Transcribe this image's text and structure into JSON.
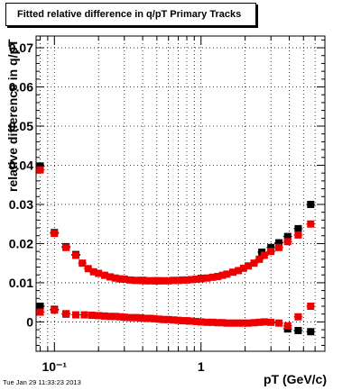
{
  "title": "Fitted relative difference in q/pT  Primary Tracks",
  "timestamp": "Tue Jan 29 11:33:23 2013",
  "chart_data": {
    "type": "scatter",
    "xlabel": "pT (GeV/c)",
    "ylabel": "relative difference in q/pT",
    "xscale": "log",
    "xlim": [
      0.075,
      7.0
    ],
    "ylim": [
      -0.0075,
      0.073
    ],
    "grid": true,
    "x_tick_labels": [
      {
        "x": 0.1,
        "label": "10⁻¹"
      },
      {
        "x": 1,
        "label": "1"
      }
    ],
    "y_tick_labels": [
      {
        "y": 0,
        "label": "0"
      },
      {
        "y": 0.01,
        "label": "0.01"
      },
      {
        "y": 0.02,
        "label": "0.02"
      },
      {
        "y": 0.03,
        "label": "0.03"
      },
      {
        "y": 0.04,
        "label": "0.04"
      },
      {
        "y": 0.05,
        "label": "0.05"
      },
      {
        "y": 0.06,
        "label": "0.06"
      },
      {
        "y": 0.07,
        "label": "0.07"
      }
    ],
    "series": [
      {
        "color": "#000000",
        "points": [
          [
            0.08,
            0.0398
          ],
          [
            0.1,
            0.0228
          ],
          [
            0.12,
            0.0192
          ],
          [
            0.14,
            0.0172
          ],
          [
            0.4,
            0.0106
          ],
          [
            0.5,
            0.0105
          ],
          [
            1.0,
            0.0111
          ],
          [
            2.6,
            0.0178
          ],
          [
            3.0,
            0.019
          ],
          [
            3.4,
            0.0202
          ],
          [
            3.9,
            0.0218
          ],
          [
            4.6,
            0.0238
          ],
          [
            5.6,
            0.03
          ],
          [
            0.08,
            0.004
          ],
          [
            0.1,
            0.0032
          ],
          [
            0.12,
            0.002
          ],
          [
            3.9,
            -0.0018
          ],
          [
            4.6,
            -0.0022
          ],
          [
            5.6,
            -0.0025
          ]
        ]
      },
      {
        "color": "#ee0000",
        "points": [
          [
            0.08,
            0.0388
          ],
          [
            0.1,
            0.0226
          ],
          [
            0.12,
            0.019
          ],
          [
            0.14,
            0.017
          ],
          [
            0.155,
            0.015
          ],
          [
            0.17,
            0.0136
          ],
          [
            0.185,
            0.0128
          ],
          [
            0.2,
            0.0124
          ],
          [
            0.22,
            0.0119
          ],
          [
            0.24,
            0.0115
          ],
          [
            0.26,
            0.0112
          ],
          [
            0.28,
            0.011
          ],
          [
            0.3,
            0.0109
          ],
          [
            0.33,
            0.0107
          ],
          [
            0.36,
            0.0106
          ],
          [
            0.39,
            0.0106
          ],
          [
            0.42,
            0.0105
          ],
          [
            0.45,
            0.0105
          ],
          [
            0.48,
            0.0105
          ],
          [
            0.52,
            0.0105
          ],
          [
            0.56,
            0.0105
          ],
          [
            0.6,
            0.0105
          ],
          [
            0.65,
            0.0106
          ],
          [
            0.7,
            0.0106
          ],
          [
            0.75,
            0.0107
          ],
          [
            0.8,
            0.0107
          ],
          [
            0.86,
            0.0108
          ],
          [
            0.93,
            0.0109
          ],
          [
            1.0,
            0.011
          ],
          [
            1.1,
            0.0112
          ],
          [
            1.2,
            0.0114
          ],
          [
            1.3,
            0.0116
          ],
          [
            1.4,
            0.0119
          ],
          [
            1.5,
            0.0122
          ],
          [
            1.65,
            0.0127
          ],
          [
            1.8,
            0.0131
          ],
          [
            1.95,
            0.0137
          ],
          [
            2.1,
            0.0143
          ],
          [
            2.3,
            0.015
          ],
          [
            2.5,
            0.016
          ],
          [
            2.7,
            0.017
          ],
          [
            3.0,
            0.018
          ],
          [
            3.4,
            0.019
          ],
          [
            3.9,
            0.0205
          ],
          [
            4.6,
            0.0222
          ],
          [
            5.6,
            0.025
          ],
          [
            0.08,
            0.0025
          ],
          [
            0.1,
            0.003
          ],
          [
            0.12,
            0.0021
          ],
          [
            0.14,
            0.0018
          ],
          [
            0.16,
            0.0018
          ],
          [
            0.18,
            0.0017
          ],
          [
            0.2,
            0.0016
          ],
          [
            0.22,
            0.0015
          ],
          [
            0.24,
            0.0014
          ],
          [
            0.26,
            0.0014
          ],
          [
            0.28,
            0.0013
          ],
          [
            0.3,
            0.0012
          ],
          [
            0.33,
            0.0011
          ],
          [
            0.36,
            0.0011
          ],
          [
            0.39,
            0.001
          ],
          [
            0.42,
            0.0009
          ],
          [
            0.45,
            0.0009
          ],
          [
            0.48,
            0.0008
          ],
          [
            0.52,
            0.0007
          ],
          [
            0.56,
            0.0006
          ],
          [
            0.6,
            0.0006
          ],
          [
            0.65,
            0.0005
          ],
          [
            0.7,
            0.0004
          ],
          [
            0.75,
            0.0003
          ],
          [
            0.8,
            0.0003
          ],
          [
            0.86,
            0.0002
          ],
          [
            0.93,
            0.0001
          ],
          [
            1.0,
            0.0
          ],
          [
            1.1,
            -0.0001
          ],
          [
            1.2,
            -0.0001
          ],
          [
            1.3,
            -0.0002
          ],
          [
            1.4,
            -0.0002
          ],
          [
            1.5,
            -0.0003
          ],
          [
            1.65,
            -0.0003
          ],
          [
            1.8,
            -0.0003
          ],
          [
            1.95,
            -0.0003
          ],
          [
            2.1,
            -0.0003
          ],
          [
            2.3,
            -0.0002
          ],
          [
            2.5,
            -0.0001
          ],
          [
            2.7,
            0.0
          ],
          [
            3.0,
            -0.0001
          ],
          [
            3.4,
            -0.0003
          ],
          [
            3.9,
            -0.001
          ],
          [
            4.6,
            0.0013
          ],
          [
            5.6,
            0.004
          ]
        ]
      }
    ]
  }
}
